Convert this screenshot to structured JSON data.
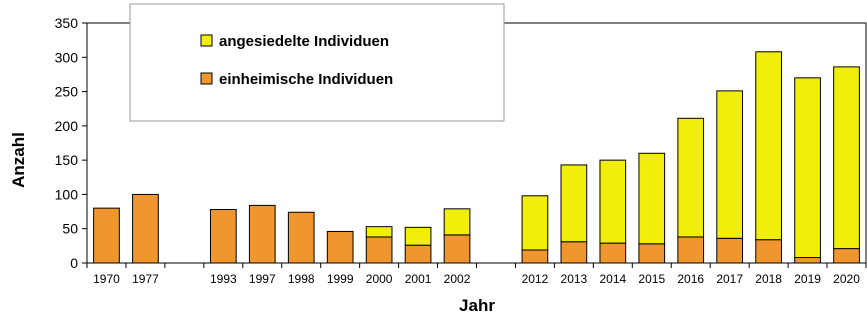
{
  "chart_data": {
    "type": "bar",
    "stacked": true,
    "categories": [
      "1970",
      "1977",
      "",
      "1993",
      "1997",
      "1998",
      "1999",
      "2000",
      "2001",
      "2002",
      "",
      "2012",
      "2013",
      "2014",
      "2015",
      "2016",
      "2017",
      "2018",
      "2019",
      "2020"
    ],
    "series": [
      {
        "name": "einheimische Individuen",
        "color": "#f0962e",
        "values": [
          80,
          100,
          null,
          78,
          84,
          74,
          46,
          38,
          26,
          41,
          null,
          19,
          31,
          29,
          28,
          38,
          36,
          34,
          8,
          21
        ]
      },
      {
        "name": "angesiedelte Individuen",
        "color": "#f2ee0c",
        "values": [
          0,
          0,
          null,
          0,
          0,
          0,
          0,
          15,
          26,
          38,
          null,
          79,
          112,
          121,
          132,
          173,
          215,
          274,
          262,
          265
        ]
      }
    ],
    "xlabel": "Jahr",
    "ylabel": "Anzahl",
    "ylim": [
      0,
      350
    ],
    "yticks": [
      0,
      50,
      100,
      150,
      200,
      250,
      300,
      350
    ],
    "grid": false,
    "legend": {
      "position": "top-left",
      "entries": [
        "angesiedelte Individuen",
        "einheimische Individuen"
      ]
    }
  }
}
